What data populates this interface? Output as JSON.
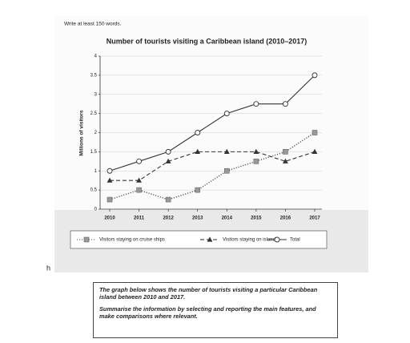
{
  "header": {
    "instruction": "Write at least 150 words.",
    "stray": "h"
  },
  "chart_data": {
    "type": "line",
    "title": "Number of tourists visiting a Caribbean island (2010–2017)",
    "y_label": "Millions of visitors",
    "categories": [
      "2010",
      "2011",
      "2012",
      "2013",
      "2014",
      "2015",
      "2016",
      "2017"
    ],
    "series": [
      {
        "name": "Visitors staying on cruise ships",
        "color": "#888888",
        "values": [
          0.25,
          0.5,
          0.25,
          0.5,
          1,
          1.25,
          1.5,
          2
        ]
      },
      {
        "name": "Visitors staying on island",
        "color": "#333333",
        "values": [
          0.75,
          0.75,
          1.25,
          1.5,
          1.5,
          1.5,
          1.25,
          1.5
        ]
      },
      {
        "name": "Total",
        "color": "#333333",
        "values": [
          1,
          1.25,
          1.5,
          2,
          2.5,
          2.75,
          2.75,
          3.5
        ]
      }
    ],
    "ylim": [
      0,
      4
    ],
    "yticks": [
      0,
      0.5,
      1,
      1.5,
      2,
      2.5,
      3,
      3.5,
      4
    ],
    "grid": true,
    "legend": "bottom"
  },
  "prompt": {
    "paragraphs": [
      "The graph below shows the number of tourists visiting a particular Caribbean island between 2010 and 2017.",
      "Summarise the information by selecting and reporting the main features, and make comparisons where relevant."
    ]
  }
}
